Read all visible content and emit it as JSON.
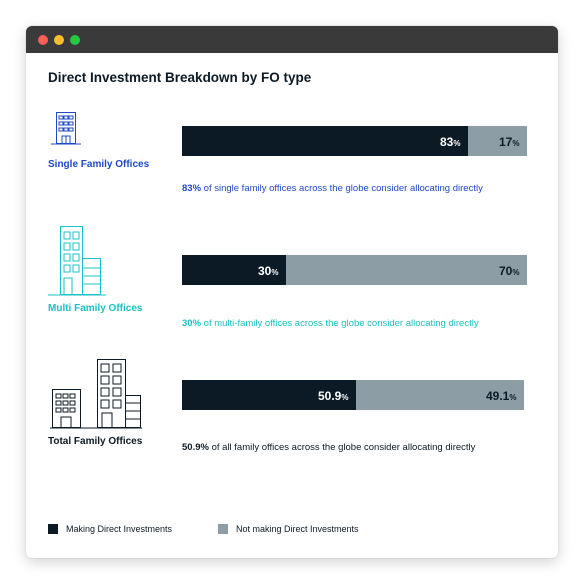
{
  "window": {
    "controls": [
      "close",
      "minimize",
      "zoom"
    ]
  },
  "chart_data": {
    "type": "bar",
    "orientation": "horizontal",
    "stacked": true,
    "title": "Direct Investment Breakdown by FO type",
    "categories": [
      "Single Family Offices",
      "Multi Family Offices",
      "Total Family Offices"
    ],
    "series": [
      {
        "name": "Making Direct Investments",
        "values": [
          83,
          30,
          50.9
        ],
        "labels": [
          "83",
          "30",
          "50.9"
        ],
        "color": "#0b1a24"
      },
      {
        "name": "Not making Direct Investments",
        "values": [
          17,
          70,
          49.1
        ],
        "labels": [
          "17",
          "70",
          "49.1"
        ],
        "color": "#8c9da6"
      }
    ],
    "percent_symbol": "%",
    "xlim": [
      0,
      100
    ],
    "legend_position": "bottom-left",
    "notes": [
      {
        "value": "83%",
        "text": " of single family offices across the globe consider allocating directly"
      },
      {
        "value": "30%",
        "text": " of multi-family offices across the globe consider allocating directly"
      },
      {
        "value": "50.9%",
        "text": " of all family offices across the globe consider allocating directly"
      }
    ],
    "group_colors": [
      "#1f49c7",
      "#1cc1c4",
      "#0b1a24"
    ],
    "icons": [
      "office-building-icon",
      "office-buildings-icon",
      "office-complex-icon"
    ]
  }
}
